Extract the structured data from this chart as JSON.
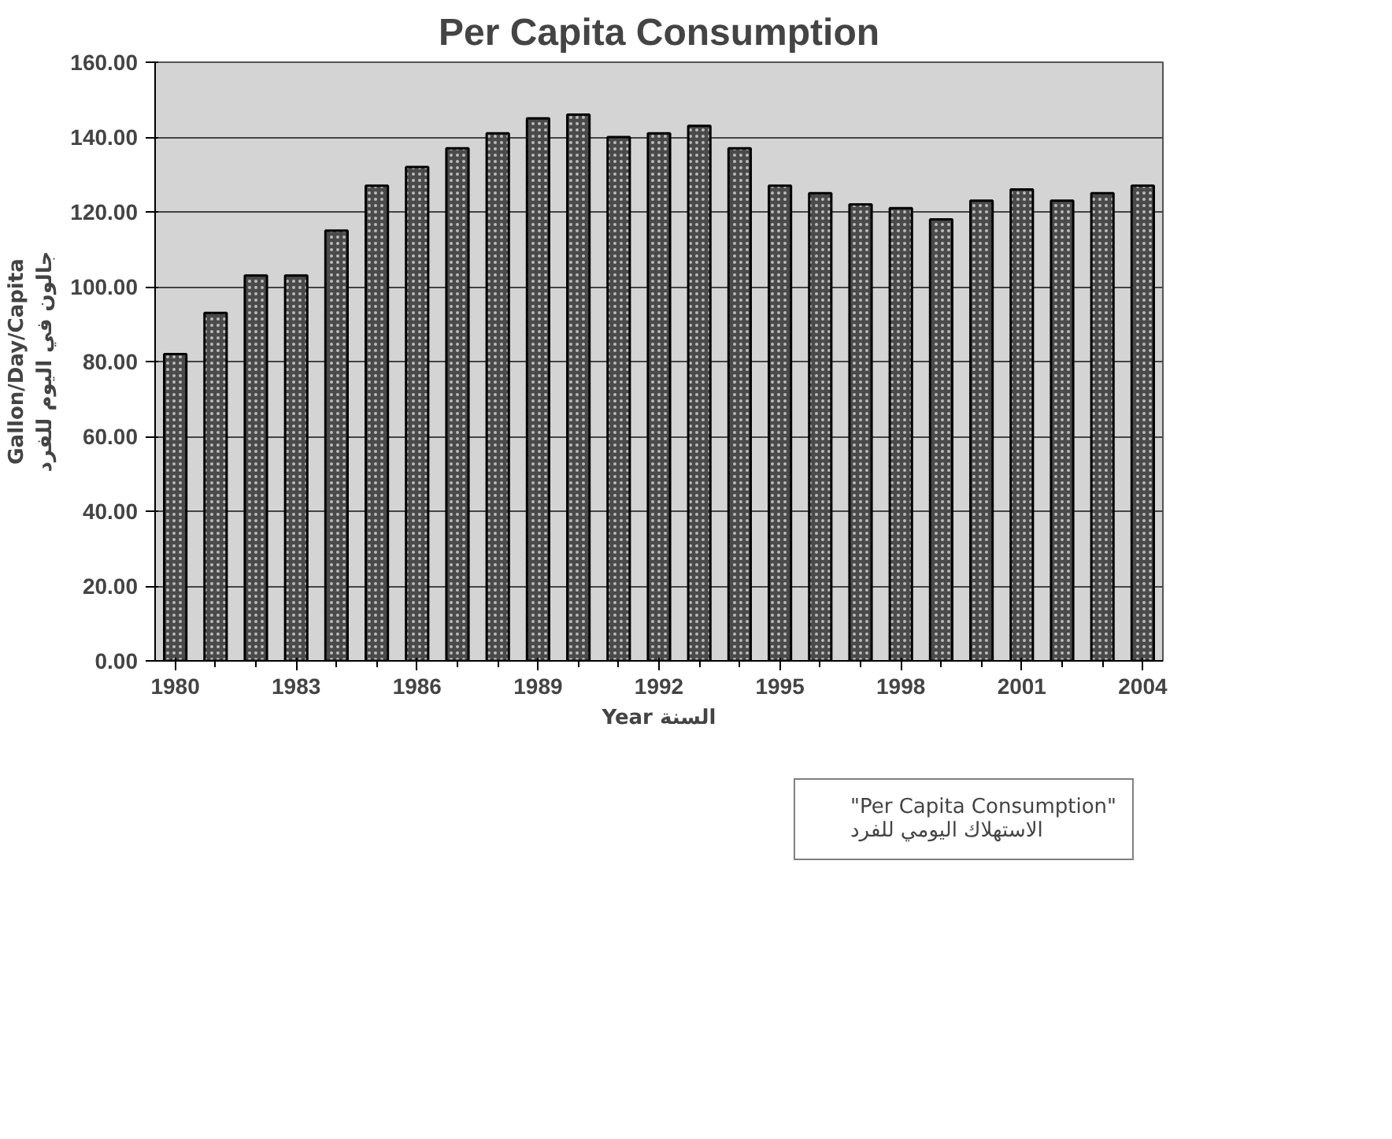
{
  "chart_data": {
    "type": "bar",
    "title": "Per Capita Consumption",
    "xlabel": "Year السنة",
    "ylabel": "Gallon/Day/Capita\nجالون في اليوم للفرد",
    "x": [
      1980,
      1981,
      1982,
      1983,
      1984,
      1985,
      1986,
      1987,
      1988,
      1989,
      1990,
      1991,
      1992,
      1993,
      1994,
      1995,
      1996,
      1997,
      1998,
      1999,
      2000,
      2001,
      2002,
      2003,
      2004
    ],
    "series": [
      {
        "name": "\"Per Capita Consumption\"\nالاستهلاك اليومي للفرد",
        "color": "#4a4a4a",
        "values": [
          82,
          93,
          103,
          103,
          115,
          127,
          132,
          137,
          141,
          145,
          146,
          140,
          141,
          143,
          137,
          127,
          125,
          122,
          121,
          118,
          123,
          126,
          123,
          125,
          127
        ]
      }
    ],
    "xlim": [
      1979.5,
      2004.5
    ],
    "xticks": [
      1980,
      1983,
      1986,
      1989,
      1992,
      1995,
      1998,
      2001,
      2004
    ],
    "ylim": [
      0,
      160
    ],
    "yticks": [
      {
        "value": 0,
        "label": "0.00"
      },
      {
        "value": 20,
        "label": "20.00"
      },
      {
        "value": 40,
        "label": "40.00"
      },
      {
        "value": 60,
        "label": "60.00"
      },
      {
        "value": 80,
        "label": "80.00"
      },
      {
        "value": 100,
        "label": "100.00"
      },
      {
        "value": 120,
        "label": "120.00"
      },
      {
        "value": 140,
        "label": "140.00"
      },
      {
        "value": 160,
        "label": "160.00"
      }
    ],
    "grid": "y",
    "legend": "bottom right"
  }
}
